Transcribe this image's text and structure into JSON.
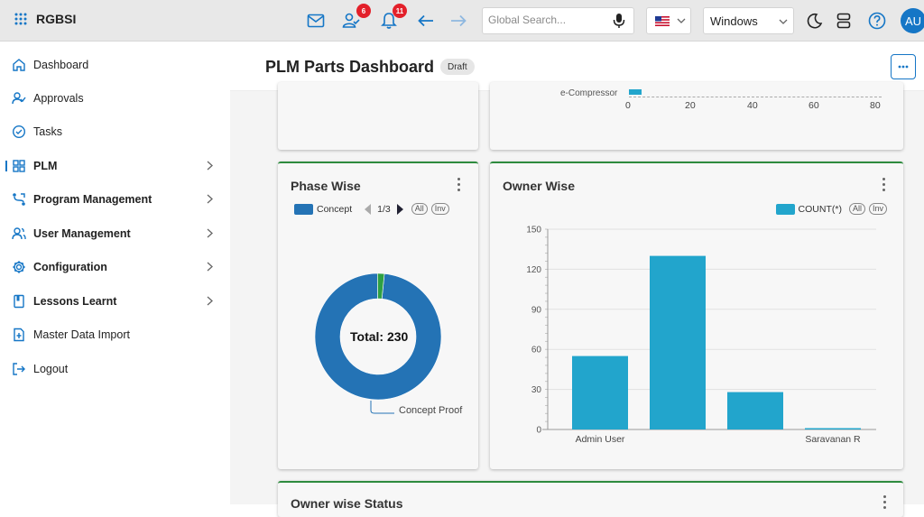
{
  "app": {
    "brand": "RGBSI",
    "avatar_initials": "AU"
  },
  "topbar": {
    "approvals_badge": "6",
    "notifications_badge": "11",
    "search_placeholder": "Global Search...",
    "os_selected": "Windows"
  },
  "sidebar": {
    "items": [
      {
        "label": "Dashboard",
        "icon": "home-icon"
      },
      {
        "label": "Approvals",
        "icon": "user-check-icon"
      },
      {
        "label": "Tasks",
        "icon": "check-circle-icon"
      },
      {
        "label": "PLM",
        "icon": "grid-icon"
      },
      {
        "label": "Program Management",
        "icon": "flow-icon"
      },
      {
        "label": "User Management",
        "icon": "users-icon"
      },
      {
        "label": "Configuration",
        "icon": "gear-icon"
      },
      {
        "label": "Lessons Learnt",
        "icon": "book-icon"
      },
      {
        "label": "Master Data Import",
        "icon": "file-import-icon"
      },
      {
        "label": "Logout",
        "icon": "logout-icon"
      }
    ]
  },
  "page": {
    "title": "PLM Parts Dashboard",
    "status": "Draft"
  },
  "top_card": {
    "category_label": "e-Compressor",
    "x_ticks": [
      "0",
      "20",
      "40",
      "60",
      "80"
    ]
  },
  "phase_card": {
    "title": "Phase Wise",
    "legend_label": "Concept",
    "pager": "1/3",
    "all_label": "All",
    "inv_label": "Inv",
    "total_label": "Total: 230",
    "slice_label": "Concept Proof"
  },
  "owner_card": {
    "title": "Owner Wise",
    "legend_label": "COUNT(*)",
    "all_label": "All",
    "inv_label": "Inv"
  },
  "status_card": {
    "title": "Owner wise Status"
  },
  "colors": {
    "accent": "#1576c6",
    "donut_blue": "#2473b5",
    "donut_green": "#2ea043",
    "bar": "#22a5cc",
    "card_border": "#2e8b3e"
  },
  "chart_data": [
    {
      "type": "pie",
      "title": "Phase Wise",
      "center_text": "Total: 230",
      "slices": [
        {
          "label": "Concept Proof",
          "value": 226
        },
        {
          "label": "",
          "value": 4
        }
      ]
    },
    {
      "type": "bar",
      "title": "Owner Wise",
      "series": [
        {
          "name": "COUNT(*)",
          "values": [
            55,
            130,
            28,
            1
          ]
        }
      ],
      "categories": [
        "Admin User",
        "",
        "",
        "Saravanan R"
      ],
      "y_ticks": [
        "0",
        "30",
        "60",
        "90",
        "120",
        "150"
      ],
      "ylim": [
        0,
        150
      ]
    }
  ]
}
